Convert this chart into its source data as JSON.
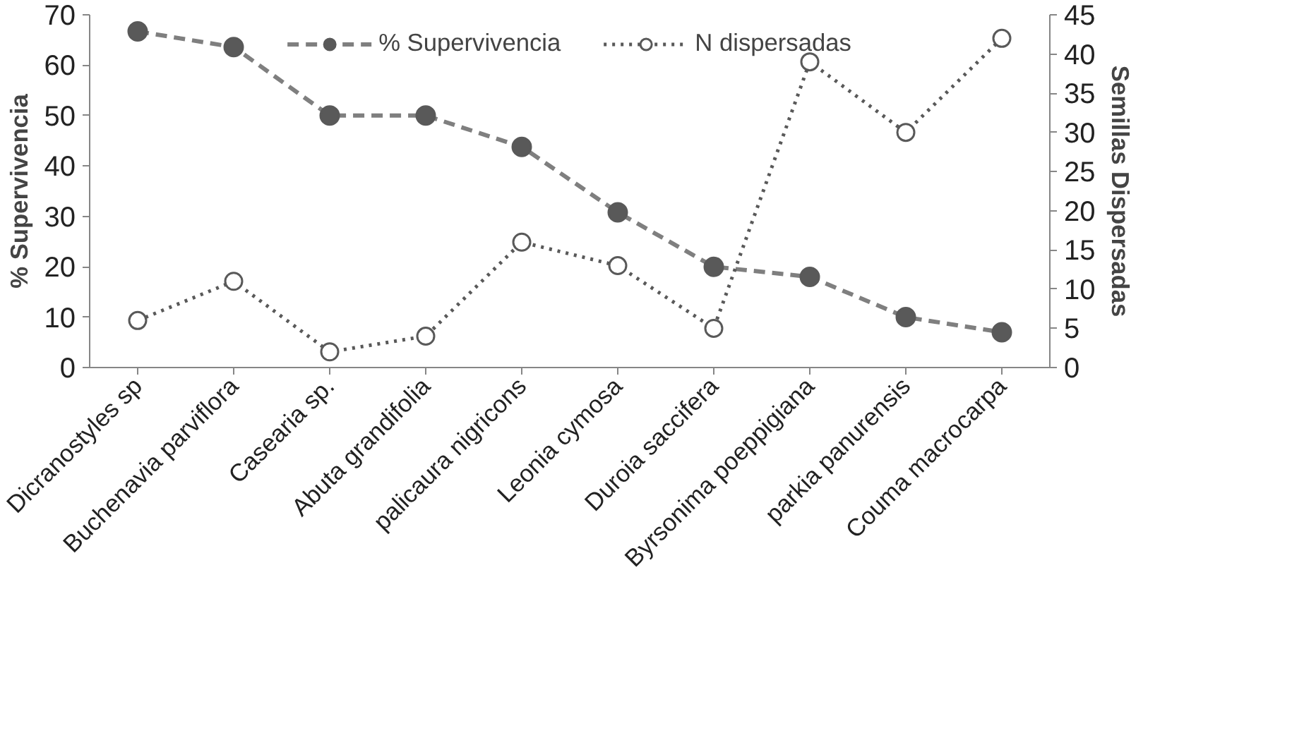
{
  "chart_data": {
    "type": "line",
    "categories": [
      "Dicranostyles sp",
      "Buchenavia parviflora",
      "Casearia sp.",
      "Abuta grandifolia",
      "palicaura nigricons",
      "Leonia cymosa",
      "Duroia saccifera",
      "Byrsonima poeppigiana",
      "parkia panurensis",
      "Couma macrocarpa"
    ],
    "series": [
      {
        "name": "% Supervivencia",
        "color": "#7f7f7f",
        "line_style": "dashed",
        "values": [
          66.7,
          63.6,
          50,
          50,
          43.8,
          30.8,
          20,
          18,
          10,
          7
        ]
      },
      {
        "name": "N dispersadas",
        "color": "#595959",
        "line_style": "dotted",
        "axis": "y2",
        "values": [
          6,
          11,
          2,
          4,
          16,
          13,
          5,
          39,
          30,
          42
        ]
      }
    ],
    "ylabel": "% Supervivencia",
    "y2label": "Semillas Dispersadas",
    "ylim": [
      0,
      70
    ],
    "yticks": [
      0,
      10,
      20,
      30,
      40,
      50,
      60,
      70
    ],
    "y2lim": [
      0,
      45
    ],
    "y2ticks": [
      0,
      5,
      10,
      15,
      20,
      25,
      30,
      35,
      40,
      45
    ],
    "marker": "circle",
    "legend": "top",
    "grid": false
  }
}
